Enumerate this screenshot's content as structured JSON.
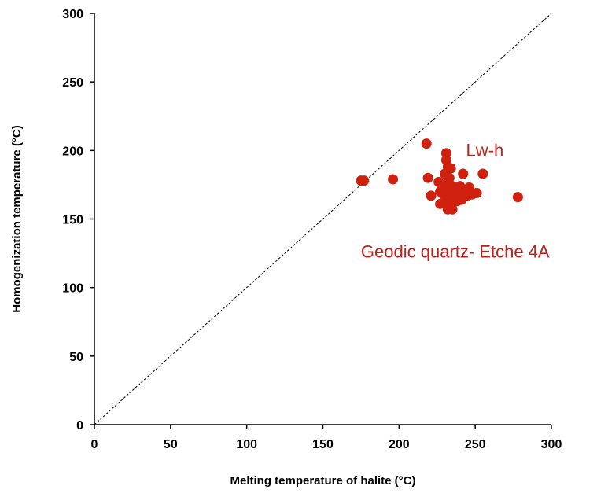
{
  "chart_data": {
    "type": "scatter",
    "xlabel": "Melting temperature of halite (°C)",
    "ylabel": "Homogenization temperature (°C)",
    "xlim": [
      0,
      300
    ],
    "ylim": [
      0,
      300
    ],
    "xticks": [
      0,
      50,
      100,
      150,
      200,
      250,
      300
    ],
    "yticks": [
      0,
      50,
      100,
      150,
      200,
      250,
      300
    ],
    "grid": false,
    "point_color": "#d0210e",
    "reference_line": {
      "style": "dashed",
      "from": [
        0,
        0
      ],
      "to": [
        300,
        300
      ]
    },
    "annotations": [
      {
        "text": "Lw-h",
        "x": 244,
        "y": 196
      },
      {
        "text": "Geodic quartz- Etche 4A",
        "x": 175,
        "y": 122
      }
    ],
    "series": [
      {
        "points": [
          [
            175,
            178
          ],
          [
            177,
            178
          ],
          [
            196,
            179
          ],
          [
            218,
            205
          ],
          [
            219,
            180
          ],
          [
            221,
            167
          ],
          [
            226,
            177
          ],
          [
            227,
            161
          ],
          [
            227,
            170
          ],
          [
            229,
            168
          ],
          [
            230,
            175
          ],
          [
            230,
            183
          ],
          [
            231,
            198
          ],
          [
            231,
            193
          ],
          [
            231,
            165
          ],
          [
            232,
            188
          ],
          [
            232,
            172
          ],
          [
            232,
            157
          ],
          [
            233,
            162
          ],
          [
            233,
            180
          ],
          [
            234,
            166
          ],
          [
            234,
            187
          ],
          [
            235,
            174
          ],
          [
            235,
            157
          ],
          [
            236,
            168
          ],
          [
            237,
            171
          ],
          [
            238,
            163
          ],
          [
            239,
            167
          ],
          [
            240,
            174
          ],
          [
            241,
            164
          ],
          [
            242,
            183
          ],
          [
            243,
            170
          ],
          [
            245,
            167
          ],
          [
            246,
            173
          ],
          [
            248,
            168
          ],
          [
            251,
            169
          ],
          [
            255,
            183
          ],
          [
            278,
            166
          ]
        ]
      }
    ]
  }
}
